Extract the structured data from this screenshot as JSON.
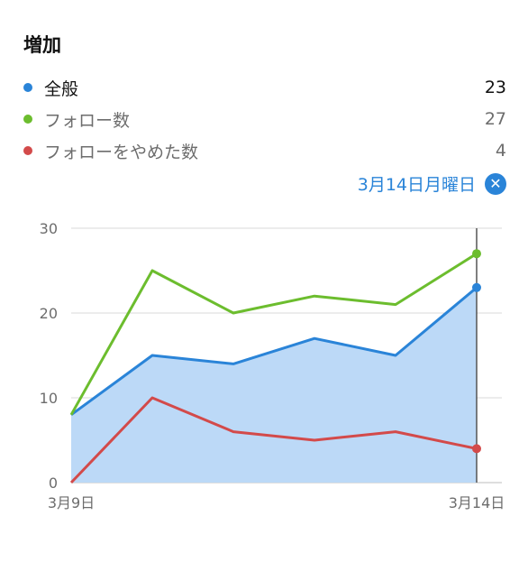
{
  "header": {
    "title": "増加"
  },
  "legend": [
    {
      "label": "全般",
      "value": "23",
      "color": "#2a84d8"
    },
    {
      "label": "フォロー数",
      "value": "27",
      "color": "#6cbd2e"
    },
    {
      "label": "フォローをやめた数",
      "value": "4",
      "color": "#d34a4a"
    }
  ],
  "selection": {
    "date_label": "3月14日月曜日",
    "close_icon": "close-icon"
  },
  "chart_data": {
    "type": "line",
    "x": [
      "3月9日",
      "",
      "",
      "",
      "",
      "3月14日"
    ],
    "x_tick_labels": [
      "3月9日",
      "3月14日"
    ],
    "ylim": [
      0,
      30
    ],
    "y_ticks": [
      "0",
      "10",
      "20",
      "30"
    ],
    "grid": true,
    "series": [
      {
        "name": "全般",
        "values": [
          8,
          15,
          14,
          17,
          15,
          23
        ],
        "color": "#2a84d8",
        "area": true
      },
      {
        "name": "フォロー数",
        "values": [
          8,
          25,
          20,
          22,
          21,
          27
        ],
        "color": "#6cbd2e"
      },
      {
        "name": "フォローをやめた数",
        "values": [
          0,
          10,
          6,
          5,
          6,
          4
        ],
        "color": "#d34a4a"
      }
    ],
    "selected_index": 5
  }
}
